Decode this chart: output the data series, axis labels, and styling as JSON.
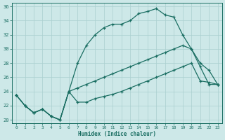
{
  "xlabel": "Humidex (Indice chaleur)",
  "bg_color": "#cde8e8",
  "grid_color": "#aacfcf",
  "line_color": "#1a6e62",
  "xlim_min": -0.5,
  "xlim_max": 23.5,
  "ylim_min": 19.5,
  "ylim_max": 36.5,
  "xticks": [
    0,
    1,
    2,
    3,
    4,
    5,
    6,
    7,
    8,
    9,
    10,
    11,
    12,
    13,
    14,
    15,
    16,
    17,
    18,
    19,
    20,
    21,
    22,
    23
  ],
  "yticks": [
    20,
    22,
    24,
    26,
    28,
    30,
    32,
    34,
    36
  ],
  "curve1_x": [
    0,
    1,
    2,
    3,
    4,
    5,
    6,
    7,
    8,
    9,
    10,
    11,
    12,
    13,
    14,
    15,
    16,
    17,
    18,
    19,
    20,
    21,
    22,
    23
  ],
  "curve1_y": [
    23.5,
    22.0,
    21.0,
    21.5,
    20.5,
    20.0,
    24.0,
    28.0,
    30.5,
    32.0,
    33.0,
    33.5,
    33.5,
    34.0,
    35.0,
    35.3,
    35.7,
    34.8,
    34.5,
    32.0,
    30.0,
    27.5,
    25.0,
    25.0
  ],
  "curve2_x": [
    0,
    1,
    2,
    3,
    4,
    5,
    6,
    7,
    8,
    9,
    10,
    11,
    12,
    13,
    14,
    15,
    16,
    17,
    18,
    19,
    20,
    21,
    22,
    23
  ],
  "curve2_y": [
    23.5,
    22.0,
    21.0,
    21.5,
    20.5,
    20.0,
    24.0,
    24.5,
    25.0,
    25.5,
    26.0,
    26.5,
    27.0,
    27.5,
    28.0,
    28.5,
    29.0,
    29.5,
    30.0,
    30.5,
    30.0,
    28.0,
    27.0,
    25.0
  ],
  "curve3_x": [
    0,
    1,
    2,
    3,
    4,
    5,
    6,
    7,
    8,
    9,
    10,
    11,
    12,
    13,
    14,
    15,
    16,
    17,
    18,
    19,
    20,
    21,
    22,
    23
  ],
  "curve3_y": [
    23.5,
    22.0,
    21.0,
    21.5,
    20.5,
    20.0,
    24.0,
    22.5,
    22.5,
    23.0,
    23.3,
    23.6,
    24.0,
    24.5,
    25.0,
    25.5,
    26.0,
    26.5,
    27.0,
    27.5,
    28.0,
    25.5,
    25.3,
    25.0
  ]
}
